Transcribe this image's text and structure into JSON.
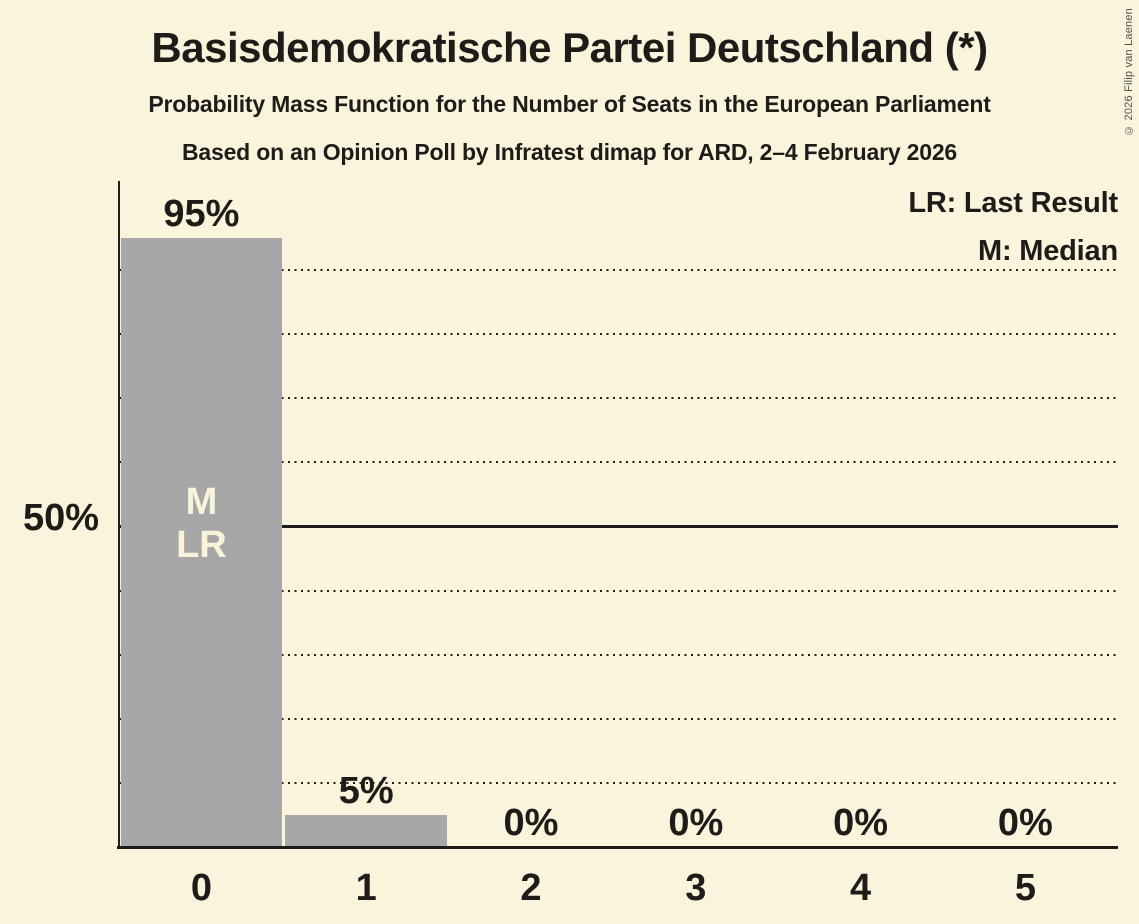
{
  "copyright": "© 2026 Filip van Laenen",
  "chart_data": {
    "type": "bar",
    "title": "Basisdemokratische Partei Deutschland (*)",
    "subtitle": "Probability Mass Function for the Number of Seats in the European Parliament",
    "poll_info": "Based on an Opinion Poll by Infratest dimap for ARD, 2–4 February 2026",
    "categories": [
      "0",
      "1",
      "2",
      "3",
      "4",
      "5"
    ],
    "values": [
      95,
      5,
      0,
      0,
      0,
      0
    ],
    "value_labels": [
      "95%",
      "5%",
      "0%",
      "0%",
      "0%",
      "0%"
    ],
    "xlabel": "",
    "ylabel": "",
    "ylim": [
      0,
      100
    ],
    "y_axis_label": "50%",
    "gridlines_dotted_pcts": [
      10,
      20,
      30,
      40,
      60,
      70,
      80,
      90
    ],
    "gridline_solid_pct": 50,
    "grid": "horizontal dotted every 10%, solid line at 50%",
    "legend_position": "top-right",
    "legend": [
      "LR: Last Result",
      "M: Median"
    ],
    "median_marker": "M",
    "last_result_marker": "LR",
    "median_bar_index": 0,
    "last_result_bar_index": 0,
    "colors": {
      "background": "#fbf4dd",
      "bar": "#a7a7a7",
      "bar_marker_text": "#faf3dc",
      "text": "#1d1c18"
    }
  }
}
